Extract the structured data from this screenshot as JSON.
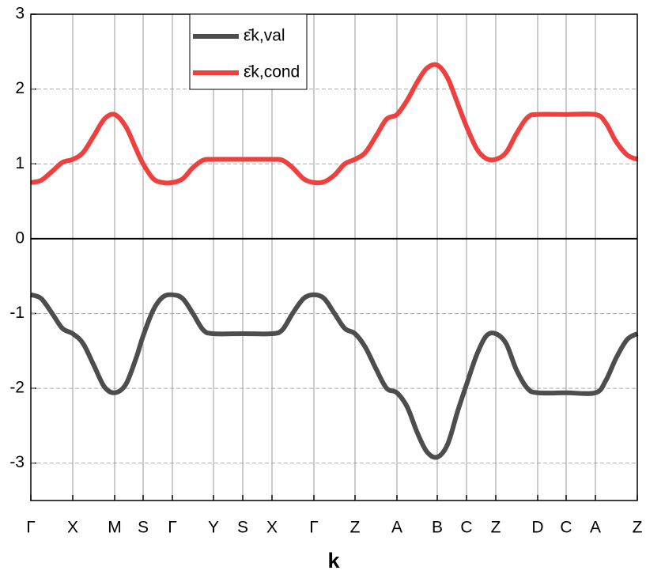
{
  "chart_data": {
    "type": "line",
    "x_label": "k",
    "x": [
      0,
      0.13,
      0.27,
      0.4,
      0.53,
      0.66,
      0.8,
      0.93,
      1.06,
      1.2,
      1.33,
      1.42,
      1.55,
      1.67,
      1.79,
      1.92,
      2.05,
      2.18,
      2.31,
      2.68,
      3.05,
      3.18,
      3.31,
      3.45,
      3.58,
      3.71,
      3.84,
      3.97,
      4.1,
      4.23,
      4.37,
      4.5,
      4.63,
      4.76,
      4.89,
      5.01,
      5.14,
      5.27,
      5.4,
      5.51,
      5.64,
      5.76,
      5.88,
      6.01,
      6.14,
      6.28,
      6.41,
      6.77,
      7.14,
      7.27,
      7.4,
      7.54,
      7.67
    ],
    "series": [
      {
        "name": "ε̄k,val",
        "color": "#4d4d4d",
        "values": [
          -0.75,
          -0.8,
          -1.0,
          -1.2,
          -1.27,
          -1.4,
          -1.7,
          -1.98,
          -2.06,
          -1.95,
          -1.6,
          -1.3,
          -0.95,
          -0.78,
          -0.75,
          -0.8,
          -1.0,
          -1.22,
          -1.27,
          -1.27,
          -1.27,
          -1.22,
          -1.0,
          -0.8,
          -0.75,
          -0.8,
          -1.0,
          -1.2,
          -1.27,
          -1.45,
          -1.75,
          -2.0,
          -2.06,
          -2.25,
          -2.6,
          -2.85,
          -2.92,
          -2.75,
          -2.3,
          -1.95,
          -1.55,
          -1.3,
          -1.27,
          -1.4,
          -1.75,
          -2.0,
          -2.06,
          -2.06,
          -2.06,
          -1.9,
          -1.6,
          -1.35,
          -1.27
        ]
      },
      {
        "name": "ε̄k,cond",
        "color": "#ef4040",
        "values": [
          0.75,
          0.78,
          0.9,
          1.02,
          1.06,
          1.15,
          1.38,
          1.6,
          1.66,
          1.5,
          1.2,
          1.0,
          0.8,
          0.75,
          0.75,
          0.8,
          0.95,
          1.05,
          1.06,
          1.06,
          1.06,
          1.05,
          0.95,
          0.8,
          0.75,
          0.76,
          0.85,
          1.0,
          1.06,
          1.15,
          1.38,
          1.6,
          1.66,
          1.85,
          2.1,
          2.28,
          2.32,
          2.15,
          1.8,
          1.5,
          1.2,
          1.07,
          1.06,
          1.15,
          1.4,
          1.62,
          1.66,
          1.66,
          1.66,
          1.55,
          1.3,
          1.12,
          1.06
        ]
      }
    ],
    "xlim": [
      0,
      7.67
    ],
    "xticks": [
      {
        "value": 0,
        "label": "Γ"
      },
      {
        "value": 0.53,
        "label": "X"
      },
      {
        "value": 1.06,
        "label": "M"
      },
      {
        "value": 1.42,
        "label": "S"
      },
      {
        "value": 1.79,
        "label": "Γ"
      },
      {
        "value": 2.31,
        "label": "Y"
      },
      {
        "value": 2.68,
        "label": "S"
      },
      {
        "value": 3.05,
        "label": "X"
      },
      {
        "value": 3.58,
        "label": "Γ"
      },
      {
        "value": 4.1,
        "label": "Z"
      },
      {
        "value": 4.63,
        "label": "A"
      },
      {
        "value": 5.14,
        "label": "B"
      },
      {
        "value": 5.51,
        "label": "C"
      },
      {
        "value": 5.88,
        "label": "Z"
      },
      {
        "value": 6.41,
        "label": "D"
      },
      {
        "value": 6.77,
        "label": "C"
      },
      {
        "value": 7.14,
        "label": "A"
      },
      {
        "value": 7.67,
        "label": "Z"
      }
    ],
    "ylim": [
      -3.5,
      3
    ],
    "yticks": [
      -3,
      -2,
      -1,
      0,
      1,
      2,
      3
    ],
    "grid": true,
    "zero_line": true,
    "legend": "top-left"
  }
}
